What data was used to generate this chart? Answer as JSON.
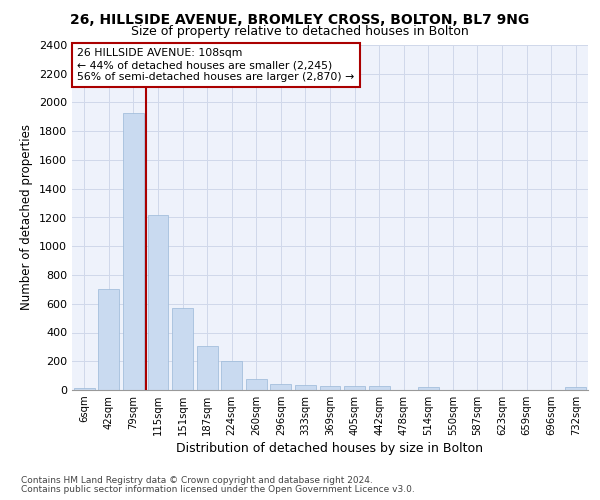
{
  "title": "26, HILLSIDE AVENUE, BROMLEY CROSS, BOLTON, BL7 9NG",
  "subtitle": "Size of property relative to detached houses in Bolton",
  "xlabel": "Distribution of detached houses by size in Bolton",
  "ylabel": "Number of detached properties",
  "bar_labels": [
    "6sqm",
    "42sqm",
    "79sqm",
    "115sqm",
    "151sqm",
    "187sqm",
    "224sqm",
    "260sqm",
    "296sqm",
    "333sqm",
    "369sqm",
    "405sqm",
    "442sqm",
    "478sqm",
    "514sqm",
    "550sqm",
    "587sqm",
    "623sqm",
    "659sqm",
    "696sqm",
    "732sqm"
  ],
  "bar_values": [
    15,
    700,
    1930,
    1220,
    570,
    305,
    200,
    80,
    45,
    35,
    30,
    30,
    25,
    0,
    20,
    0,
    0,
    0,
    0,
    0,
    20
  ],
  "bar_color": "#c9daf0",
  "bar_edge_color": "#9ab8d8",
  "annotation_title": "26 HILLSIDE AVENUE: 108sqm",
  "annotation_line1": "← 44% of detached houses are smaller (2,245)",
  "annotation_line2": "56% of semi-detached houses are larger (2,870) →",
  "vline_color": "#aa0000",
  "annotation_box_edgecolor": "#aa0000",
  "ylim": [
    0,
    2400
  ],
  "yticks": [
    0,
    200,
    400,
    600,
    800,
    1000,
    1200,
    1400,
    1600,
    1800,
    2000,
    2200,
    2400
  ],
  "footnote1": "Contains HM Land Registry data © Crown copyright and database right 2024.",
  "footnote2": "Contains public sector information licensed under the Open Government Licence v3.0.",
  "bg_color": "#eef2fb",
  "grid_color": "#d0d8ea",
  "title_fontsize": 10,
  "subtitle_fontsize": 9
}
